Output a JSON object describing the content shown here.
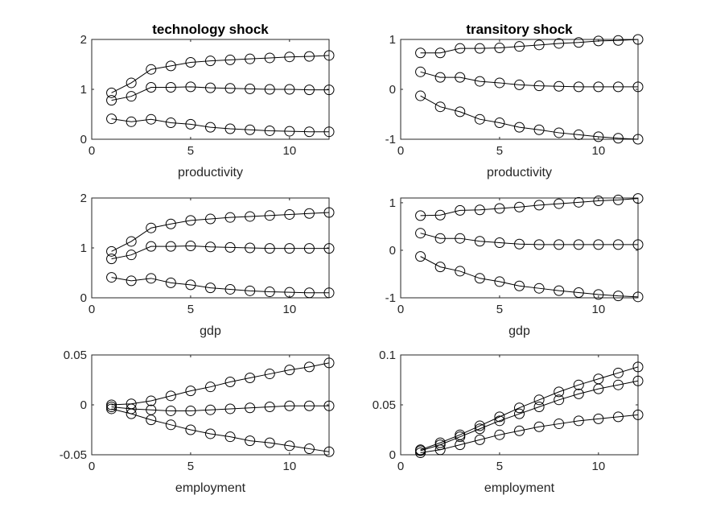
{
  "figure": {
    "background": "#ffffff",
    "line_color": "#000000",
    "marker": "open-circle"
  },
  "chart_data": [
    {
      "type": "line",
      "col": 0,
      "row": 0,
      "title": "technology shock",
      "xlabel": "productivity",
      "xlim": [
        0,
        12
      ],
      "ylim": [
        0,
        2
      ],
      "xticks": [
        0,
        5,
        10
      ],
      "yticks": [
        0,
        1,
        2
      ],
      "xticklabels": [
        "0",
        "5",
        "10"
      ],
      "yticklabels": [
        "0",
        "1",
        "2"
      ],
      "x": [
        1,
        2,
        3,
        4,
        5,
        6,
        7,
        8,
        9,
        10,
        11,
        12
      ],
      "series": [
        {
          "values": [
            0.93,
            1.13,
            1.4,
            1.47,
            1.54,
            1.57,
            1.59,
            1.61,
            1.63,
            1.65,
            1.66,
            1.68
          ]
        },
        {
          "values": [
            0.78,
            0.86,
            1.04,
            1.04,
            1.05,
            1.03,
            1.02,
            1.01,
            1.0,
            1.0,
            0.99,
            0.99
          ]
        },
        {
          "values": [
            0.41,
            0.35,
            0.4,
            0.33,
            0.3,
            0.24,
            0.21,
            0.19,
            0.17,
            0.16,
            0.15,
            0.15
          ]
        }
      ]
    },
    {
      "type": "line",
      "col": 1,
      "row": 0,
      "title": "transitory shock",
      "xlabel": "productivity",
      "xlim": [
        0,
        12
      ],
      "ylim": [
        -1,
        1
      ],
      "xticks": [
        0,
        5,
        10
      ],
      "yticks": [
        -1,
        0,
        1
      ],
      "xticklabels": [
        "0",
        "5",
        "10"
      ],
      "yticklabels": [
        "-1",
        "0",
        "1"
      ],
      "x": [
        1,
        2,
        3,
        4,
        5,
        6,
        7,
        8,
        9,
        10,
        11,
        12
      ],
      "series": [
        {
          "values": [
            0.73,
            0.73,
            0.82,
            0.82,
            0.83,
            0.86,
            0.89,
            0.92,
            0.94,
            0.97,
            0.98,
            1.0
          ]
        },
        {
          "values": [
            0.35,
            0.24,
            0.24,
            0.16,
            0.13,
            0.09,
            0.07,
            0.06,
            0.05,
            0.05,
            0.05,
            0.05
          ]
        },
        {
          "values": [
            -0.13,
            -0.35,
            -0.45,
            -0.6,
            -0.67,
            -0.76,
            -0.81,
            -0.87,
            -0.91,
            -0.95,
            -0.98,
            -1.0
          ]
        }
      ]
    },
    {
      "type": "line",
      "col": 0,
      "row": 1,
      "title": "",
      "xlabel": "gdp",
      "xlim": [
        0,
        12
      ],
      "ylim": [
        0,
        2
      ],
      "xticks": [
        0,
        5,
        10
      ],
      "yticks": [
        0,
        1,
        2
      ],
      "xticklabels": [
        "0",
        "5",
        "10"
      ],
      "yticklabels": [
        "0",
        "1",
        "2"
      ],
      "x": [
        1,
        2,
        3,
        4,
        5,
        6,
        7,
        8,
        9,
        10,
        11,
        12
      ],
      "series": [
        {
          "values": [
            0.93,
            1.13,
            1.4,
            1.48,
            1.55,
            1.58,
            1.61,
            1.63,
            1.65,
            1.67,
            1.69,
            1.71
          ]
        },
        {
          "values": [
            0.78,
            0.86,
            1.03,
            1.03,
            1.04,
            1.02,
            1.01,
            1.0,
            0.99,
            0.99,
            0.99,
            0.99
          ]
        },
        {
          "values": [
            0.41,
            0.34,
            0.39,
            0.3,
            0.26,
            0.2,
            0.17,
            0.14,
            0.12,
            0.11,
            0.1,
            0.1
          ]
        }
      ]
    },
    {
      "type": "line",
      "col": 1,
      "row": 1,
      "title": "",
      "xlabel": "gdp",
      "xlim": [
        0,
        12
      ],
      "ylim": [
        -1,
        1.1
      ],
      "xticks": [
        0,
        5,
        10
      ],
      "yticks": [
        -1,
        0,
        1
      ],
      "xticklabels": [
        "0",
        "5",
        "10"
      ],
      "yticklabels": [
        "-1",
        "0",
        "1"
      ],
      "x": [
        1,
        2,
        3,
        4,
        5,
        6,
        7,
        8,
        9,
        10,
        11,
        12
      ],
      "series": [
        {
          "values": [
            0.73,
            0.74,
            0.84,
            0.85,
            0.88,
            0.91,
            0.95,
            0.98,
            1.01,
            1.04,
            1.06,
            1.09
          ]
        },
        {
          "values": [
            0.36,
            0.25,
            0.25,
            0.19,
            0.16,
            0.13,
            0.12,
            0.12,
            0.12,
            0.12,
            0.12,
            0.12
          ]
        },
        {
          "values": [
            -0.13,
            -0.35,
            -0.44,
            -0.59,
            -0.66,
            -0.75,
            -0.8,
            -0.85,
            -0.89,
            -0.93,
            -0.96,
            -0.98
          ]
        }
      ]
    },
    {
      "type": "line",
      "col": 0,
      "row": 2,
      "title": "",
      "xlabel": "employment",
      "xlim": [
        0,
        12
      ],
      "ylim": [
        -0.05,
        0.05
      ],
      "xticks": [
        0,
        5,
        10
      ],
      "yticks": [
        -0.05,
        0,
        0.05
      ],
      "xticklabels": [
        "0",
        "5",
        "10"
      ],
      "yticklabels": [
        "-0.05",
        "0",
        "0.05"
      ],
      "x": [
        1,
        2,
        3,
        4,
        5,
        6,
        7,
        8,
        9,
        10,
        11,
        12
      ],
      "series": [
        {
          "values": [
            0.0,
            0.001,
            0.004,
            0.009,
            0.014,
            0.018,
            0.023,
            0.027,
            0.031,
            0.035,
            0.038,
            0.042
          ]
        },
        {
          "values": [
            -0.002,
            -0.004,
            -0.005,
            -0.006,
            -0.006,
            -0.005,
            -0.004,
            -0.003,
            -0.002,
            -0.001,
            -0.001,
            -0.001
          ]
        },
        {
          "values": [
            -0.004,
            -0.009,
            -0.015,
            -0.02,
            -0.025,
            -0.029,
            -0.032,
            -0.036,
            -0.038,
            -0.041,
            -0.044,
            -0.047
          ]
        }
      ]
    },
    {
      "type": "line",
      "col": 1,
      "row": 2,
      "title": "",
      "xlabel": "employment",
      "xlim": [
        0,
        12
      ],
      "ylim": [
        0,
        0.1
      ],
      "xticks": [
        0,
        5,
        10
      ],
      "yticks": [
        0,
        0.05,
        0.1
      ],
      "xticklabels": [
        "0",
        "5",
        "10"
      ],
      "yticklabels": [
        "0",
        "0.05",
        "0.1"
      ],
      "x": [
        1,
        2,
        3,
        4,
        5,
        6,
        7,
        8,
        9,
        10,
        11,
        12
      ],
      "series": [
        {
          "values": [
            0.005,
            0.012,
            0.02,
            0.029,
            0.038,
            0.047,
            0.055,
            0.063,
            0.07,
            0.076,
            0.082,
            0.088
          ]
        },
        {
          "values": [
            0.004,
            0.01,
            0.018,
            0.026,
            0.034,
            0.041,
            0.048,
            0.055,
            0.061,
            0.066,
            0.07,
            0.074
          ]
        },
        {
          "values": [
            0.002,
            0.005,
            0.01,
            0.015,
            0.02,
            0.024,
            0.028,
            0.031,
            0.034,
            0.036,
            0.038,
            0.04
          ]
        }
      ]
    }
  ]
}
